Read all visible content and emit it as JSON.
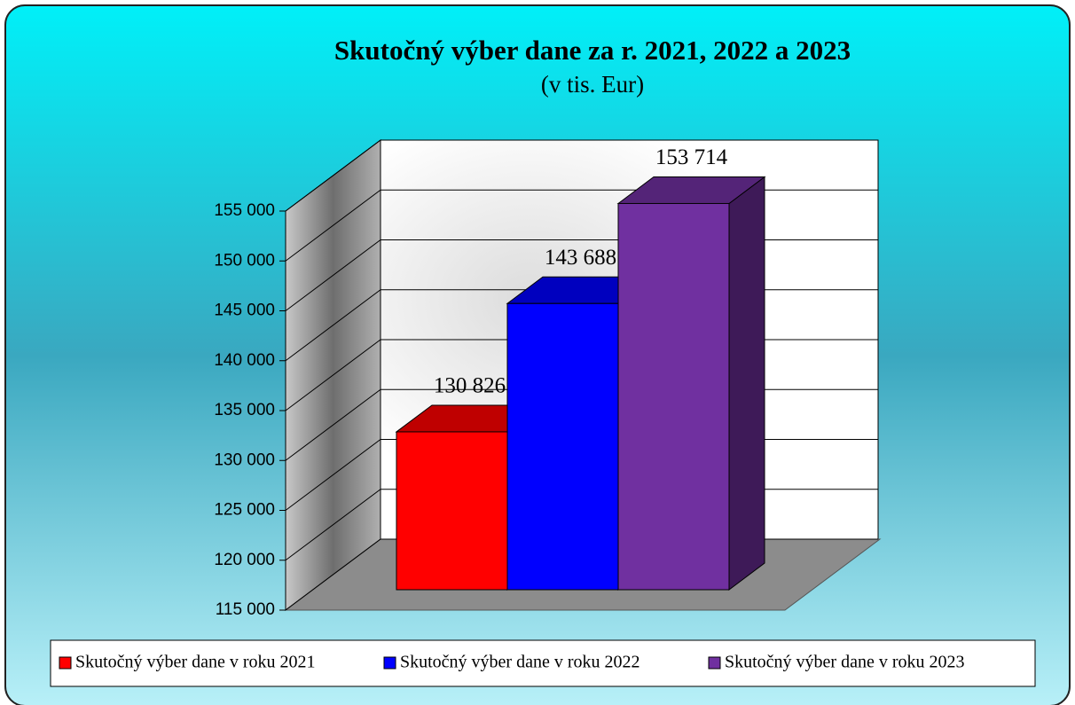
{
  "chart_data": {
    "type": "bar3d",
    "title": "Skutočný výber dane za r. 2021, 2022 a 2023",
    "subtitle": "(v tis. Eur)",
    "series": [
      {
        "name": "Skutočný výber dane v roku 2021",
        "color": "#ff0000",
        "values": [
          130826
        ],
        "value_labels": [
          "130 826"
        ]
      },
      {
        "name": "Skutočný výber dane v roku 2022",
        "color": "#0000ff",
        "values": [
          143688
        ],
        "value_labels": [
          "143 688"
        ]
      },
      {
        "name": "Skutočný výber dane v roku 2023",
        "color": "#7030a0",
        "values": [
          153714
        ],
        "value_labels": [
          "153 714"
        ]
      }
    ],
    "ylim": [
      115000,
      155000
    ],
    "yticks": [
      {
        "value": 115000,
        "label": "115 000"
      },
      {
        "value": 120000,
        "label": "120 000"
      },
      {
        "value": 125000,
        "label": "125 000"
      },
      {
        "value": 130000,
        "label": "130 000"
      },
      {
        "value": 135000,
        "label": "135 000"
      },
      {
        "value": 140000,
        "label": "140 000"
      },
      {
        "value": 145000,
        "label": "145 000"
      },
      {
        "value": 150000,
        "label": "150 000"
      },
      {
        "value": 155000,
        "label": "155 000"
      }
    ],
    "grid": true,
    "legend": "bottom"
  }
}
